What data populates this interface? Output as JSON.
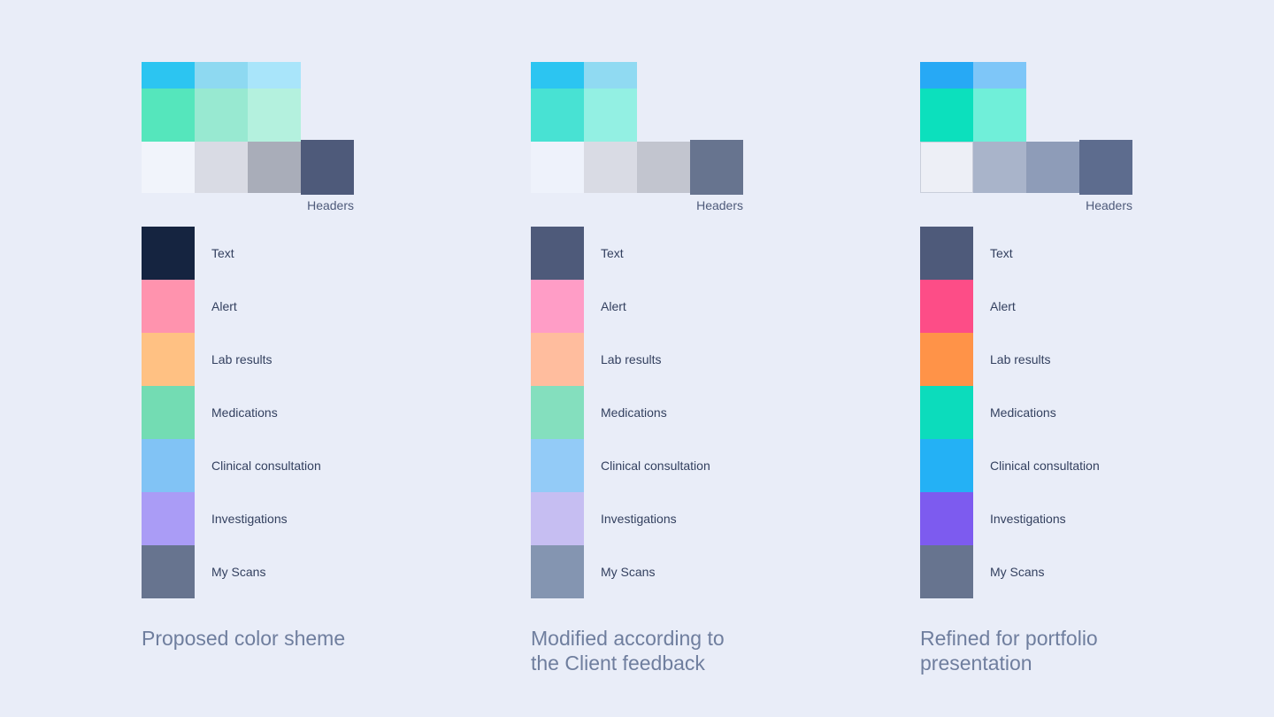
{
  "background": "#e9edf8",
  "columns": [
    {
      "caption_lines": [
        "Proposed color sheme"
      ],
      "headers_label": "Headers",
      "grid": {
        "row1": [
          "#2cc5f1",
          "#8ed9f1",
          "#a9e5fa"
        ],
        "row2": [
          "#55e6bc",
          "#98e9d1",
          "#b4f1de"
        ],
        "row3": [
          "#f1f4fb",
          "#d9dbe4",
          "#a9adb9",
          "#4e5a7a"
        ]
      },
      "items": [
        {
          "label": "Text",
          "color": "#152440"
        },
        {
          "label": "Alert",
          "color": "#ff93ae"
        },
        {
          "label": "Lab results",
          "color": "#ffc183"
        },
        {
          "label": "Medications",
          "color": "#73dcb3"
        },
        {
          "label": "Clinical consultation",
          "color": "#81c3f5"
        },
        {
          "label": "Investigations",
          "color": "#aa9cf6"
        },
        {
          "label": "My Scans",
          "color": "#67748f"
        }
      ]
    },
    {
      "caption_lines": [
        "Modified according to",
        "the Client feedback"
      ],
      "headers_label": "Headers",
      "grid": {
        "row1": [
          "#2cc5f1",
          "#90daf2"
        ],
        "row2": [
          "#48e2d3",
          "#93f0e3"
        ],
        "row3": [
          "#eef2fb",
          "#d9dbe4",
          "#c2c5cf",
          "#67748f"
        ]
      },
      "items": [
        {
          "label": "Text",
          "color": "#4e5a7a"
        },
        {
          "label": "Alert",
          "color": "#ff9dc6"
        },
        {
          "label": "Lab results",
          "color": "#ffbd9e"
        },
        {
          "label": "Medications",
          "color": "#84dfbe"
        },
        {
          "label": "Clinical consultation",
          "color": "#93cbf7"
        },
        {
          "label": "Investigations",
          "color": "#c6bef2"
        },
        {
          "label": "My Scans",
          "color": "#8495b1"
        }
      ]
    },
    {
      "caption_lines": [
        "Refined for portfolio",
        "presentation"
      ],
      "headers_label": "Headers",
      "grid": {
        "row1": [
          "#27a9f5",
          "#7ec6f8"
        ],
        "row2": [
          "#0ce0bd",
          "#70efd9"
        ],
        "row3": [
          "#edeff6",
          "#a9b4ca",
          "#8e9cb8",
          "#5d6c8e"
        ]
      },
      "items": [
        {
          "label": "Text",
          "color": "#4e5a7a"
        },
        {
          "label": "Alert",
          "color": "#fd4d87"
        },
        {
          "label": "Lab results",
          "color": "#ff9348"
        },
        {
          "label": "Medications",
          "color": "#0cdcbc"
        },
        {
          "label": "Clinical consultation",
          "color": "#24b1f5"
        },
        {
          "label": "Investigations",
          "color": "#7d5bef"
        },
        {
          "label": "My Scans",
          "color": "#67748f"
        }
      ]
    }
  ]
}
